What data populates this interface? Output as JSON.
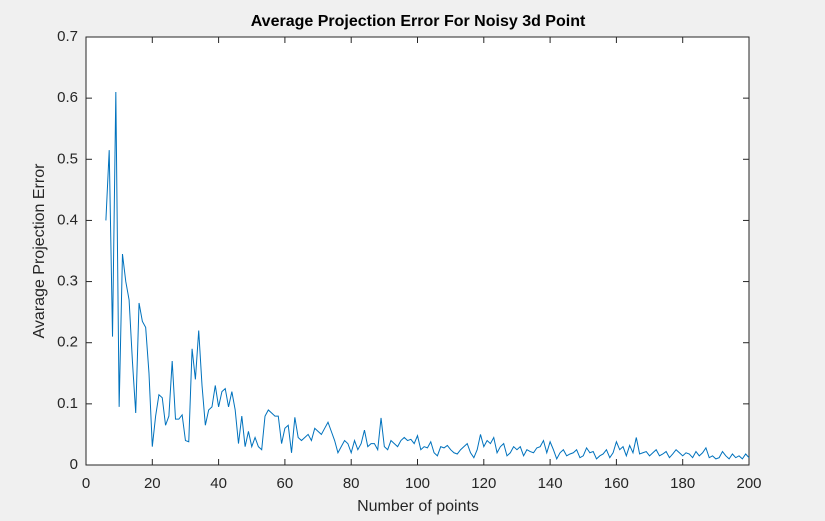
{
  "chart_data": {
    "type": "line",
    "title": "Average Projection Error For Noisy 3d Point",
    "x_label": "Number of points",
    "y_label": "Avarage Projection Error",
    "xlim": [
      0,
      200
    ],
    "ylim": [
      0,
      0.7
    ],
    "xticks": [
      0,
      20,
      40,
      60,
      80,
      100,
      120,
      140,
      160,
      180,
      200
    ],
    "yticks": [
      0,
      0.1,
      0.2,
      0.3,
      0.4,
      0.5,
      0.6,
      0.7
    ],
    "color": "#0072bd",
    "x": [
      6,
      7,
      8,
      9,
      10,
      11,
      12,
      13,
      14,
      15,
      16,
      17,
      18,
      19,
      20,
      21,
      22,
      23,
      24,
      25,
      26,
      27,
      28,
      29,
      30,
      31,
      32,
      33,
      34,
      35,
      36,
      37,
      38,
      39,
      40,
      41,
      42,
      43,
      44,
      45,
      46,
      47,
      48,
      49,
      50,
      51,
      52,
      53,
      54,
      55,
      56,
      57,
      58,
      59,
      60,
      61,
      62,
      63,
      64,
      65,
      66,
      67,
      68,
      69,
      70,
      71,
      72,
      73,
      74,
      75,
      76,
      77,
      78,
      79,
      80,
      81,
      82,
      83,
      84,
      85,
      86,
      87,
      88,
      89,
      90,
      91,
      92,
      93,
      94,
      95,
      96,
      97,
      98,
      99,
      100,
      101,
      102,
      103,
      104,
      105,
      106,
      107,
      108,
      109,
      110,
      111,
      112,
      113,
      114,
      115,
      116,
      117,
      118,
      119,
      120,
      121,
      122,
      123,
      124,
      125,
      126,
      127,
      128,
      129,
      130,
      131,
      132,
      133,
      134,
      135,
      136,
      137,
      138,
      139,
      140,
      141,
      142,
      143,
      144,
      145,
      146,
      147,
      148,
      149,
      150,
      151,
      152,
      153,
      154,
      155,
      156,
      157,
      158,
      159,
      160,
      161,
      162,
      163,
      164,
      165,
      166,
      167,
      168,
      169,
      170,
      171,
      172,
      173,
      174,
      175,
      176,
      177,
      178,
      179,
      180,
      181,
      182,
      183,
      184,
      185,
      186,
      187,
      188,
      189,
      190,
      191,
      192,
      193,
      194,
      195,
      196,
      197,
      198,
      199,
      200
    ],
    "values": [
      0.4,
      0.515,
      0.21,
      0.61,
      0.095,
      0.345,
      0.3,
      0.27,
      0.17,
      0.085,
      0.265,
      0.235,
      0.225,
      0.15,
      0.03,
      0.08,
      0.115,
      0.11,
      0.065,
      0.08,
      0.17,
      0.075,
      0.075,
      0.082,
      0.04,
      0.038,
      0.19,
      0.14,
      0.22,
      0.13,
      0.065,
      0.09,
      0.095,
      0.13,
      0.095,
      0.12,
      0.125,
      0.095,
      0.12,
      0.09,
      0.035,
      0.08,
      0.03,
      0.055,
      0.03,
      0.045,
      0.03,
      0.025,
      0.08,
      0.09,
      0.085,
      0.08,
      0.08,
      0.035,
      0.06,
      0.065,
      0.02,
      0.078,
      0.045,
      0.04,
      0.045,
      0.05,
      0.04,
      0.06,
      0.055,
      0.05,
      0.06,
      0.07,
      0.055,
      0.04,
      0.02,
      0.03,
      0.04,
      0.035,
      0.02,
      0.04,
      0.025,
      0.035,
      0.057,
      0.03,
      0.035,
      0.035,
      0.025,
      0.077,
      0.03,
      0.025,
      0.04,
      0.035,
      0.03,
      0.04,
      0.045,
      0.04,
      0.042,
      0.035,
      0.048,
      0.025,
      0.03,
      0.028,
      0.038,
      0.02,
      0.015,
      0.03,
      0.028,
      0.032,
      0.025,
      0.02,
      0.018,
      0.025,
      0.03,
      0.035,
      0.02,
      0.012,
      0.025,
      0.05,
      0.03,
      0.04,
      0.035,
      0.045,
      0.02,
      0.03,
      0.035,
      0.015,
      0.02,
      0.03,
      0.025,
      0.03,
      0.015,
      0.025,
      0.022,
      0.02,
      0.028,
      0.03,
      0.04,
      0.02,
      0.038,
      0.025,
      0.01,
      0.02,
      0.025,
      0.015,
      0.018,
      0.02,
      0.025,
      0.012,
      0.015,
      0.028,
      0.02,
      0.022,
      0.01,
      0.015,
      0.018,
      0.025,
      0.012,
      0.02,
      0.038,
      0.025,
      0.03,
      0.015,
      0.032,
      0.02,
      0.045,
      0.018,
      0.02,
      0.022,
      0.015,
      0.02,
      0.025,
      0.015,
      0.018,
      0.022,
      0.012,
      0.018,
      0.025,
      0.02,
      0.015,
      0.02,
      0.018,
      0.012,
      0.022,
      0.015,
      0.02,
      0.028,
      0.012,
      0.015,
      0.01,
      0.012,
      0.022,
      0.015,
      0.01,
      0.018,
      0.012,
      0.015,
      0.01,
      0.018,
      0.012
    ]
  }
}
